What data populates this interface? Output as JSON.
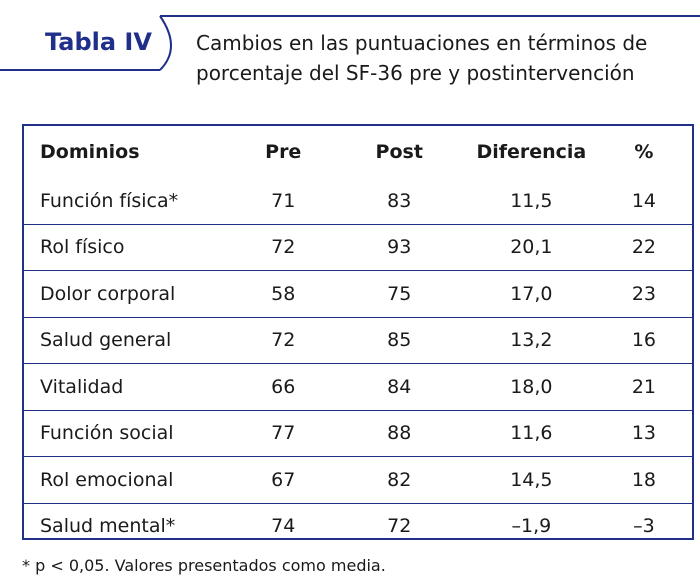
{
  "title": {
    "label": "Tabla IV",
    "caption_line1": "Cambios en las puntuaciones en términos de",
    "caption_line2": "porcentaje del SF-36 pre y postintervención"
  },
  "table": {
    "headers": [
      "Dominios",
      "Pre",
      "Post",
      "Diferencia",
      "%"
    ],
    "rows": [
      [
        "Función física*",
        "71",
        "83",
        "11,5",
        "14"
      ],
      [
        "Rol físico",
        "72",
        "93",
        "20,1",
        "22"
      ],
      [
        "Dolor corporal",
        "58",
        "75",
        "17,0",
        "23"
      ],
      [
        "Salud general",
        "72",
        "85",
        "13,2",
        "16"
      ],
      [
        "Vitalidad",
        "66",
        "84",
        "18,0",
        "21"
      ],
      [
        "Función social",
        "77",
        "88",
        "11,6",
        "13"
      ],
      [
        "Rol emocional",
        "67",
        "82",
        "14,5",
        "18"
      ],
      [
        "Salud mental*",
        "74",
        "72",
        "–1,9",
        "–3"
      ]
    ]
  },
  "footnote": "* p < 0,05. Valores presentados como media.",
  "colors": {
    "accent": "#1f2f8a"
  }
}
